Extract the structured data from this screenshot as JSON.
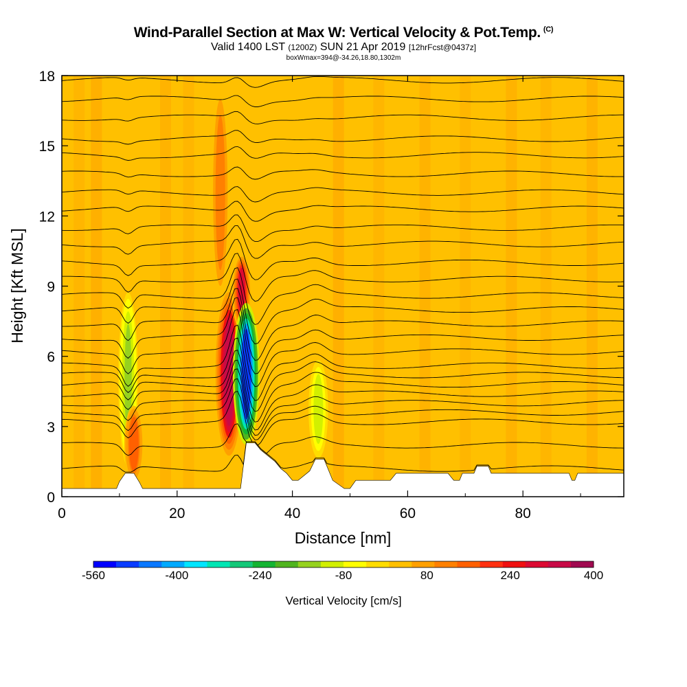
{
  "header": {
    "title": "Wind-Parallel Section at Max W: Vertical Velocity & Pot.Temp.",
    "copyright": "(C)",
    "valid_prefix": "Valid 1400 LST",
    "utc": "(1200Z)",
    "valid_date": "SUN 21 Apr 2019",
    "forecast": "[12hrFcst@0437z]",
    "boxline": "boxWmax=394@-34.26,18.80,1302m"
  },
  "chart_data": {
    "type": "heatmap",
    "title": "Wind-Parallel Section at Max W: Vertical Velocity & Pot.Temp.",
    "xlabel": "Distance [nm]",
    "ylabel": "Height [Kft MSL]",
    "xlim": [
      0,
      97.5
    ],
    "ylim": [
      0,
      18
    ],
    "x_ticks": [
      "0",
      "20",
      "40",
      "60",
      "80"
    ],
    "x_tick_values": [
      0,
      20,
      40,
      60,
      80
    ],
    "y_ticks": [
      "0",
      "3",
      "6",
      "9",
      "12",
      "15",
      "18"
    ],
    "y_tick_values": [
      0,
      3,
      6,
      9,
      12,
      15,
      18
    ],
    "colorbar": {
      "title": "Vertical Velocity [cm/s]",
      "labels": [
        "-560",
        "-400",
        "-240",
        "-80",
        "80",
        "240",
        "400"
      ],
      "colors": [
        "#0000ff",
        "#0a3cff",
        "#0a78ff",
        "#00aaff",
        "#00e6ff",
        "#00e6b4",
        "#14c878",
        "#14b432",
        "#50b41e",
        "#96d21e",
        "#d2f000",
        "#ffff00",
        "#ffdd00",
        "#ffc000",
        "#ffa000",
        "#ff8000",
        "#ff6000",
        "#ff3010",
        "#f01010",
        "#dc0a32",
        "#c80a46",
        "#a00a50"
      ]
    },
    "background_value_cms": 10,
    "vertical_velocity_features": [
      {
        "x": 29.0,
        "y_range": [
          1.5,
          9.0
        ],
        "peak_cms": 394,
        "sign": "up"
      },
      {
        "x": 31.2,
        "y_range": [
          7.0,
          10.5
        ],
        "peak_cms": 300,
        "sign": "up"
      },
      {
        "x": 32.0,
        "y_range": [
          2.0,
          8.5
        ],
        "peak_cms": -560,
        "sign": "down"
      },
      {
        "x": 27.5,
        "y_range": [
          8.0,
          18.0
        ],
        "peak_cms": 150,
        "sign": "up"
      },
      {
        "x": 11.5,
        "y_range": [
          1.0,
          9.0
        ],
        "peak_cms": -150,
        "sign": "down"
      },
      {
        "x": 12.5,
        "y_range": [
          0.5,
          4.0
        ],
        "peak_cms": 200,
        "sign": "up"
      },
      {
        "x": 44.5,
        "y_range": [
          1.5,
          6.0
        ],
        "peak_cms": -120,
        "sign": "down"
      }
    ],
    "terrain_top_kft": [
      [
        0,
        0.35
      ],
      [
        9.5,
        0.35
      ],
      [
        10,
        0.65
      ],
      [
        11,
        1.0
      ],
      [
        12.5,
        1.0
      ],
      [
        13.5,
        0.6
      ],
      [
        14,
        0.35
      ],
      [
        31,
        0.35
      ],
      [
        32,
        2.3
      ],
      [
        33.5,
        2.3
      ],
      [
        34.5,
        2.0
      ],
      [
        37,
        1.5
      ],
      [
        38,
        1.2
      ],
      [
        39,
        1.0
      ],
      [
        40,
        0.7
      ],
      [
        41,
        0.7
      ],
      [
        42,
        0.9
      ],
      [
        43,
        1.1
      ],
      [
        44,
        1.6
      ],
      [
        45.5,
        1.6
      ],
      [
        47,
        0.7
      ],
      [
        49,
        0.35
      ],
      [
        50,
        0.35
      ],
      [
        51,
        0.7
      ],
      [
        57,
        0.7
      ],
      [
        58,
        1.0
      ],
      [
        67,
        1.0
      ],
      [
        68,
        0.7
      ],
      [
        69,
        0.7
      ],
      [
        69.5,
        1.0
      ],
      [
        71.5,
        1.0
      ],
      [
        72,
        1.3
      ],
      [
        74,
        1.3
      ],
      [
        74.5,
        1.0
      ],
      [
        88,
        1.0
      ],
      [
        88.5,
        0.7
      ],
      [
        89,
        0.7
      ],
      [
        89.5,
        1.0
      ],
      [
        97.5,
        1.0
      ]
    ],
    "potential_temperature_contour_heights_kft": [
      1.2,
      2.2,
      3.2,
      3.6,
      4.0,
      4.4,
      4.8,
      5.2,
      5.6,
      6.2,
      6.8,
      7.4,
      8.0,
      8.6,
      9.3,
      10.0,
      10.8,
      11.5,
      12.3,
      13.0,
      13.8,
      14.6,
      15.3,
      16.2,
      17.0,
      17.8
    ]
  }
}
